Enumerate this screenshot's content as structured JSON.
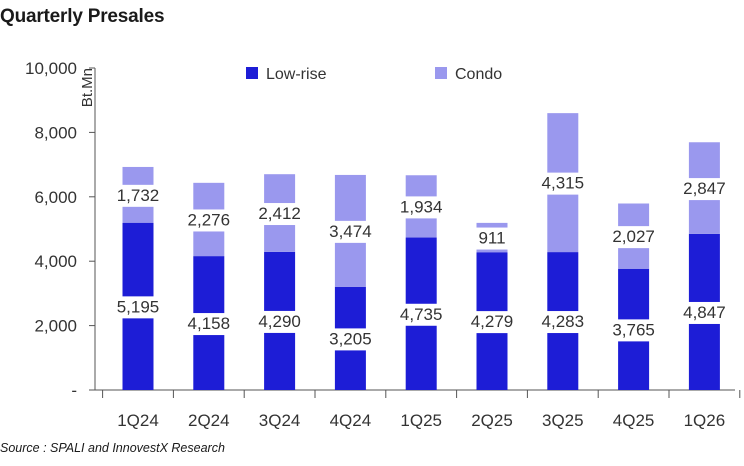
{
  "title": "Quarterly Presales",
  "source": "Source : SPALI and InnovestX Research",
  "colors": {
    "low_rise": "#1d1dd6",
    "condo": "#9a98ee",
    "axis": "#555555",
    "text": "#333333"
  },
  "chart_data": {
    "type": "bar",
    "stacked": true,
    "title": "Quarterly Presales",
    "xlabel": "",
    "ylabel": "Bt.Mn",
    "ylim": [
      0,
      10000
    ],
    "yticks": [
      0,
      2000,
      4000,
      6000,
      8000,
      10000
    ],
    "ytick_labels": [
      "-",
      "2,000",
      "4,000",
      "6,000",
      "8,000",
      "10,000"
    ],
    "categories": [
      "1Q24",
      "2Q24",
      "3Q24",
      "4Q24",
      "1Q25",
      "2Q25",
      "3Q25",
      "4Q25",
      "1Q26"
    ],
    "series": [
      {
        "name": "Low-rise",
        "values": [
          5195,
          4158,
          4290,
          3205,
          4735,
          4279,
          4283,
          3765,
          4847
        ],
        "labels": [
          "5,195",
          "4,158",
          "4,290",
          "3,205",
          "4,735",
          "4,279",
          "4,283",
          "3,765",
          "4,847"
        ]
      },
      {
        "name": "Condo",
        "values": [
          1732,
          2276,
          2412,
          3474,
          1934,
          911,
          4315,
          2027,
          2847
        ],
        "labels": [
          "1,732",
          "2,276",
          "2,412",
          "3,474",
          "1,934",
          "911",
          "4,315",
          "2,027",
          "2,847"
        ]
      }
    ],
    "legend": "top",
    "grid": false
  }
}
